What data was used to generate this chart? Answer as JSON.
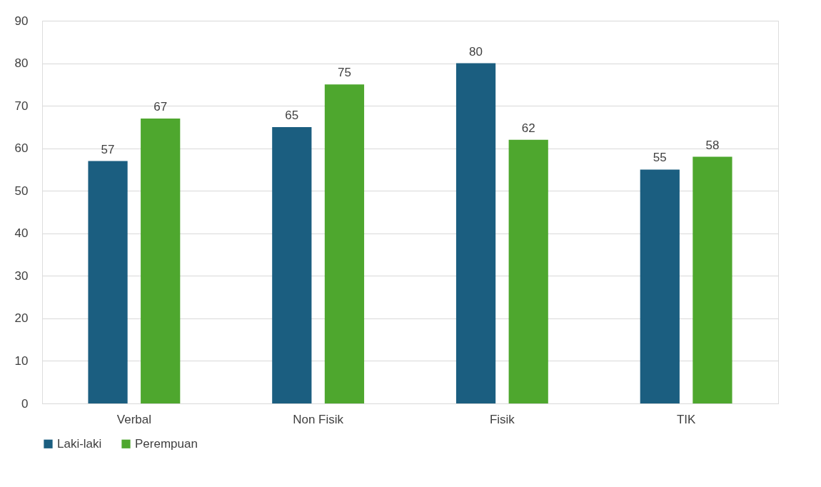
{
  "chart_data": {
    "type": "bar",
    "categories": [
      "Verbal",
      "Non Fisik",
      "Fisik",
      "TIK"
    ],
    "series": [
      {
        "name": "Laki-laki",
        "color": "#1b5e80",
        "values": [
          57,
          65,
          80,
          55
        ]
      },
      {
        "name": "Perempuan",
        "color": "#4ea72e",
        "values": [
          67,
          75,
          62,
          58
        ]
      }
    ],
    "ylim": [
      0,
      90
    ],
    "yticks": [
      0,
      10,
      20,
      30,
      40,
      50,
      60,
      70,
      80,
      90
    ],
    "grid": "y",
    "legend": "bottom",
    "data_labels": true
  }
}
